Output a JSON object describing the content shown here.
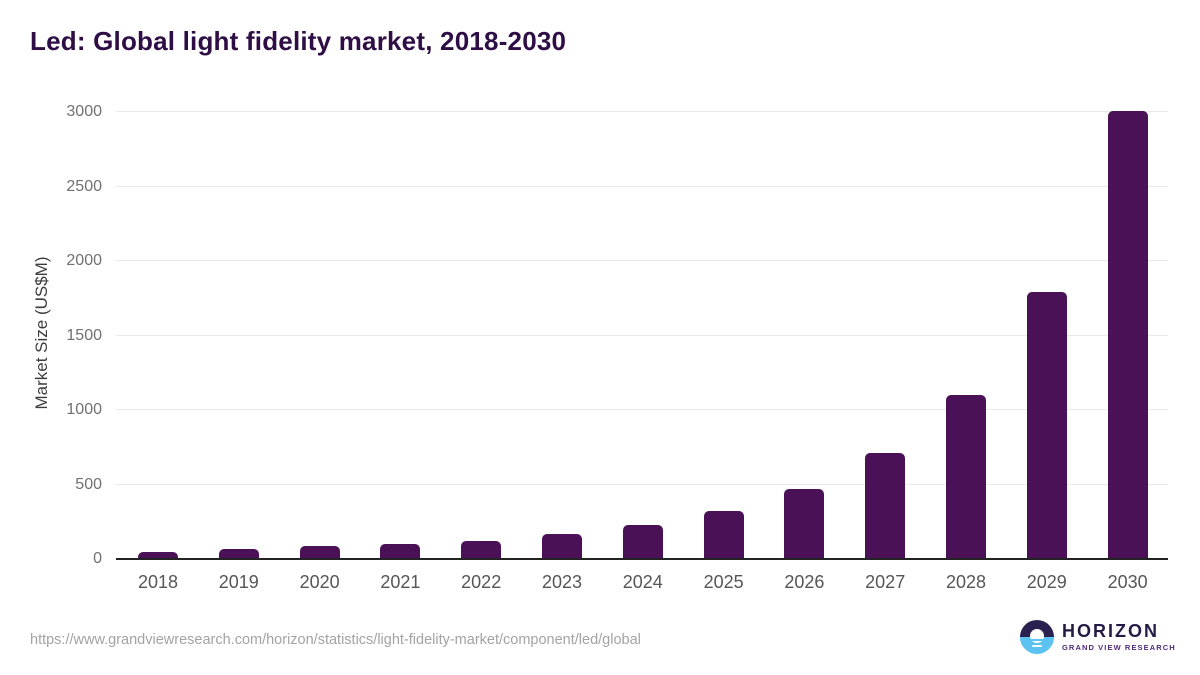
{
  "title": "Led: Global light fidelity market, 2018-2030",
  "chart_data": {
    "type": "bar",
    "title": "Led: Global light fidelity market, 2018-2030",
    "categories": [
      "2018",
      "2019",
      "2020",
      "2021",
      "2022",
      "2023",
      "2024",
      "2025",
      "2026",
      "2027",
      "2028",
      "2029",
      "2030"
    ],
    "values": [
      45,
      70,
      85,
      100,
      120,
      170,
      225,
      320,
      470,
      710,
      1100,
      1790,
      3010
    ],
    "xlabel": "",
    "ylabel": "Market Size (US$M)",
    "ylim": [
      0,
      3000
    ],
    "yticks": [
      0,
      500,
      1000,
      1500,
      2000,
      2500,
      3000
    ],
    "grid": true,
    "legend": false,
    "bar_color": "#4a1157"
  },
  "footer": {
    "source_url": "https://www.grandviewresearch.com/horizon/statistics/light-fidelity-market/component/led/global",
    "logo": {
      "title": "HORIZON",
      "subtitle": "GRAND VIEW RESEARCH"
    }
  },
  "colors": {
    "title_text": "#2e0e44",
    "bar": "#4a1157",
    "gridline": "#e9e9e9",
    "axis_line": "#232323",
    "tick_text": "#707070",
    "url_text": "#a3a3a3",
    "logo_dark": "#2b2150",
    "logo_blue": "#5cc2f2"
  }
}
